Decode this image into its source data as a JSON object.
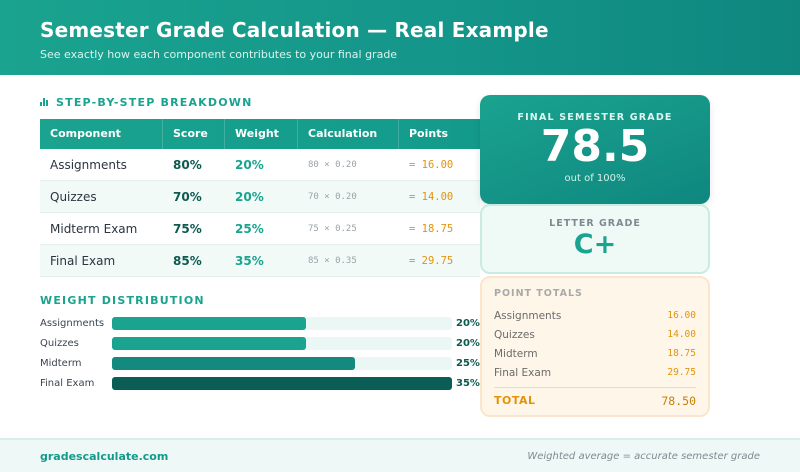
{
  "header": {
    "title": "Semester Grade Calculation — Real Example",
    "subtitle": "See exactly how each component contributes to your final grade"
  },
  "breakdown": {
    "title": "STEP-BY-STEP BREAKDOWN",
    "icon": "bar-chart-icon",
    "columns": [
      "Component",
      "Score",
      "Weight",
      "Calculation",
      "Points"
    ],
    "rows": [
      {
        "component": "Assignments",
        "score": "80%",
        "weight": "20%",
        "calculation": "80 × 0.20",
        "points": "= 16.00"
      },
      {
        "component": "Quizzes",
        "score": "70%",
        "weight": "20%",
        "calculation": "70 × 0.20",
        "points": "= 14.00"
      },
      {
        "component": "Midterm Exam",
        "score": "75%",
        "weight": "25%",
        "calculation": "75 × 0.25",
        "points": "= 18.75"
      },
      {
        "component": "Final Exam",
        "score": "85%",
        "weight": "35%",
        "calculation": "85 × 0.35",
        "points": "= 29.75"
      }
    ]
  },
  "weights": {
    "title": "WEIGHT DISTRIBUTION",
    "items": [
      {
        "label": "Assignments",
        "pct": "20%",
        "value": 20,
        "color": "#1aa38f"
      },
      {
        "label": "Quizzes",
        "pct": "20%",
        "value": 20,
        "color": "#1aa38f"
      },
      {
        "label": "Midterm",
        "pct": "25%",
        "value": 25,
        "color": "#14897d"
      },
      {
        "label": "Final Exam",
        "pct": "35%",
        "value": 35,
        "color": "#0b5e55"
      }
    ],
    "max": 35
  },
  "final_grade": {
    "label": "FINAL SEMESTER GRADE",
    "value": "78.5",
    "sub": "out of 100%"
  },
  "letter_grade": {
    "label": "LETTER GRADE",
    "value": "C+"
  },
  "point_totals": {
    "label": "POINT TOTALS",
    "items": [
      {
        "name": "Assignments",
        "points": "16.00"
      },
      {
        "name": "Quizzes",
        "points": "14.00"
      },
      {
        "name": "Midterm",
        "points": "18.75"
      },
      {
        "name": "Final Exam",
        "points": "29.75"
      }
    ],
    "total_label": "TOTAL",
    "total_value": "78.50"
  },
  "footer": {
    "brand": "gradescalculate.com",
    "tagline": "Weighted average = accurate semester grade"
  },
  "colors": {
    "accent": "#1aa38f",
    "dark_teal": "#0b5e55",
    "orange": "#e3930a"
  }
}
